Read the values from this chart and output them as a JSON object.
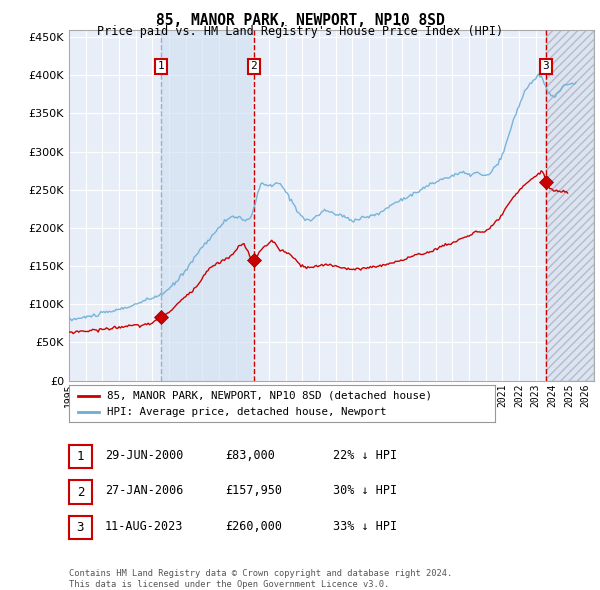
{
  "title": "85, MANOR PARK, NEWPORT, NP10 8SD",
  "subtitle": "Price paid vs. HM Land Registry's House Price Index (HPI)",
  "ylim": [
    0,
    460000
  ],
  "yticks": [
    0,
    50000,
    100000,
    150000,
    200000,
    250000,
    300000,
    350000,
    400000,
    450000
  ],
  "xlim_start": 1995.0,
  "xlim_end": 2026.5,
  "sale_date_years": [
    2000.5,
    2006.08,
    2023.61
  ],
  "sale_prices": [
    83000,
    157950,
    260000
  ],
  "sale_labels": [
    "1",
    "2",
    "3"
  ],
  "legend_red": "85, MANOR PARK, NEWPORT, NP10 8SD (detached house)",
  "legend_blue": "HPI: Average price, detached house, Newport",
  "table_rows": [
    [
      "1",
      "29-JUN-2000",
      "£83,000",
      "22% ↓ HPI"
    ],
    [
      "2",
      "27-JAN-2006",
      "£157,950",
      "30% ↓ HPI"
    ],
    [
      "3",
      "11-AUG-2023",
      "£260,000",
      "33% ↓ HPI"
    ]
  ],
  "footnote": "Contains HM Land Registry data © Crown copyright and database right 2024.\nThis data is licensed under the Open Government Licence v3.0.",
  "hpi_color": "#6baed6",
  "sale_color": "#cc0000",
  "bg_color": "#e8eef8",
  "grid_color": "white",
  "shade_between_color": "#dce6f5"
}
